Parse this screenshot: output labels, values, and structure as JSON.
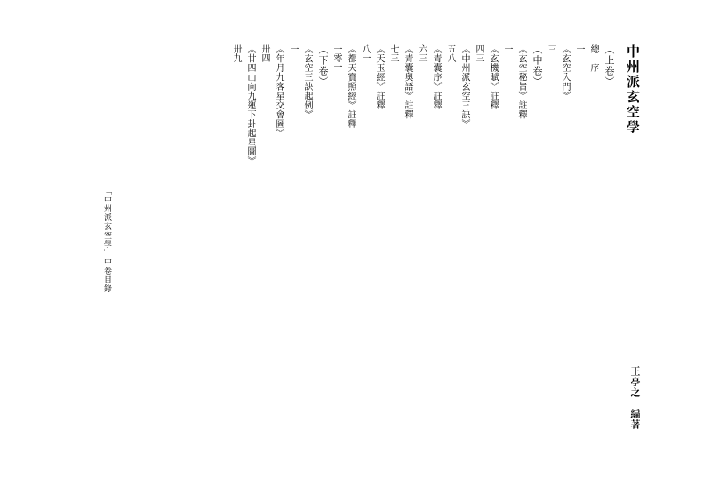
{
  "title": "中州派玄空學",
  "author": "王亭之　編著",
  "side_text": "　　　　　　　　　　　　　",
  "volumes": [
    {
      "label": "（上卷）",
      "entries": [
        {
          "label": "總　序",
          "page": "一"
        },
        {
          "label": "《玄空入門》",
          "page": "三"
        }
      ]
    },
    {
      "label": "（中卷）",
      "entries": [
        {
          "label": "《玄空秘旨》註釋",
          "page": "一"
        },
        {
          "label": "《玄機賦》註釋",
          "page": "四三"
        },
        {
          "label": "《中州派玄空三訣》",
          "page": "五八"
        },
        {
          "label": "《青囊序》註釋",
          "page": "六三"
        },
        {
          "label": "《青囊奧語》註釋",
          "page": "七三"
        },
        {
          "label": "《天玉經》註釋",
          "page": "八一"
        },
        {
          "label": "《都天寶照經》註釋",
          "page": "一零一"
        }
      ]
    },
    {
      "label": "（下卷）",
      "entries": [
        {
          "label": "《玄空三訣起例》",
          "page": "一"
        },
        {
          "label": "《年月九客星交會圖》",
          "page": "卅四"
        },
        {
          "label": "《廿四山向九運下卦起星圖》",
          "page": "卅九"
        }
      ]
    }
  ],
  "footer": "「中州派玄空學」中卷目錄"
}
